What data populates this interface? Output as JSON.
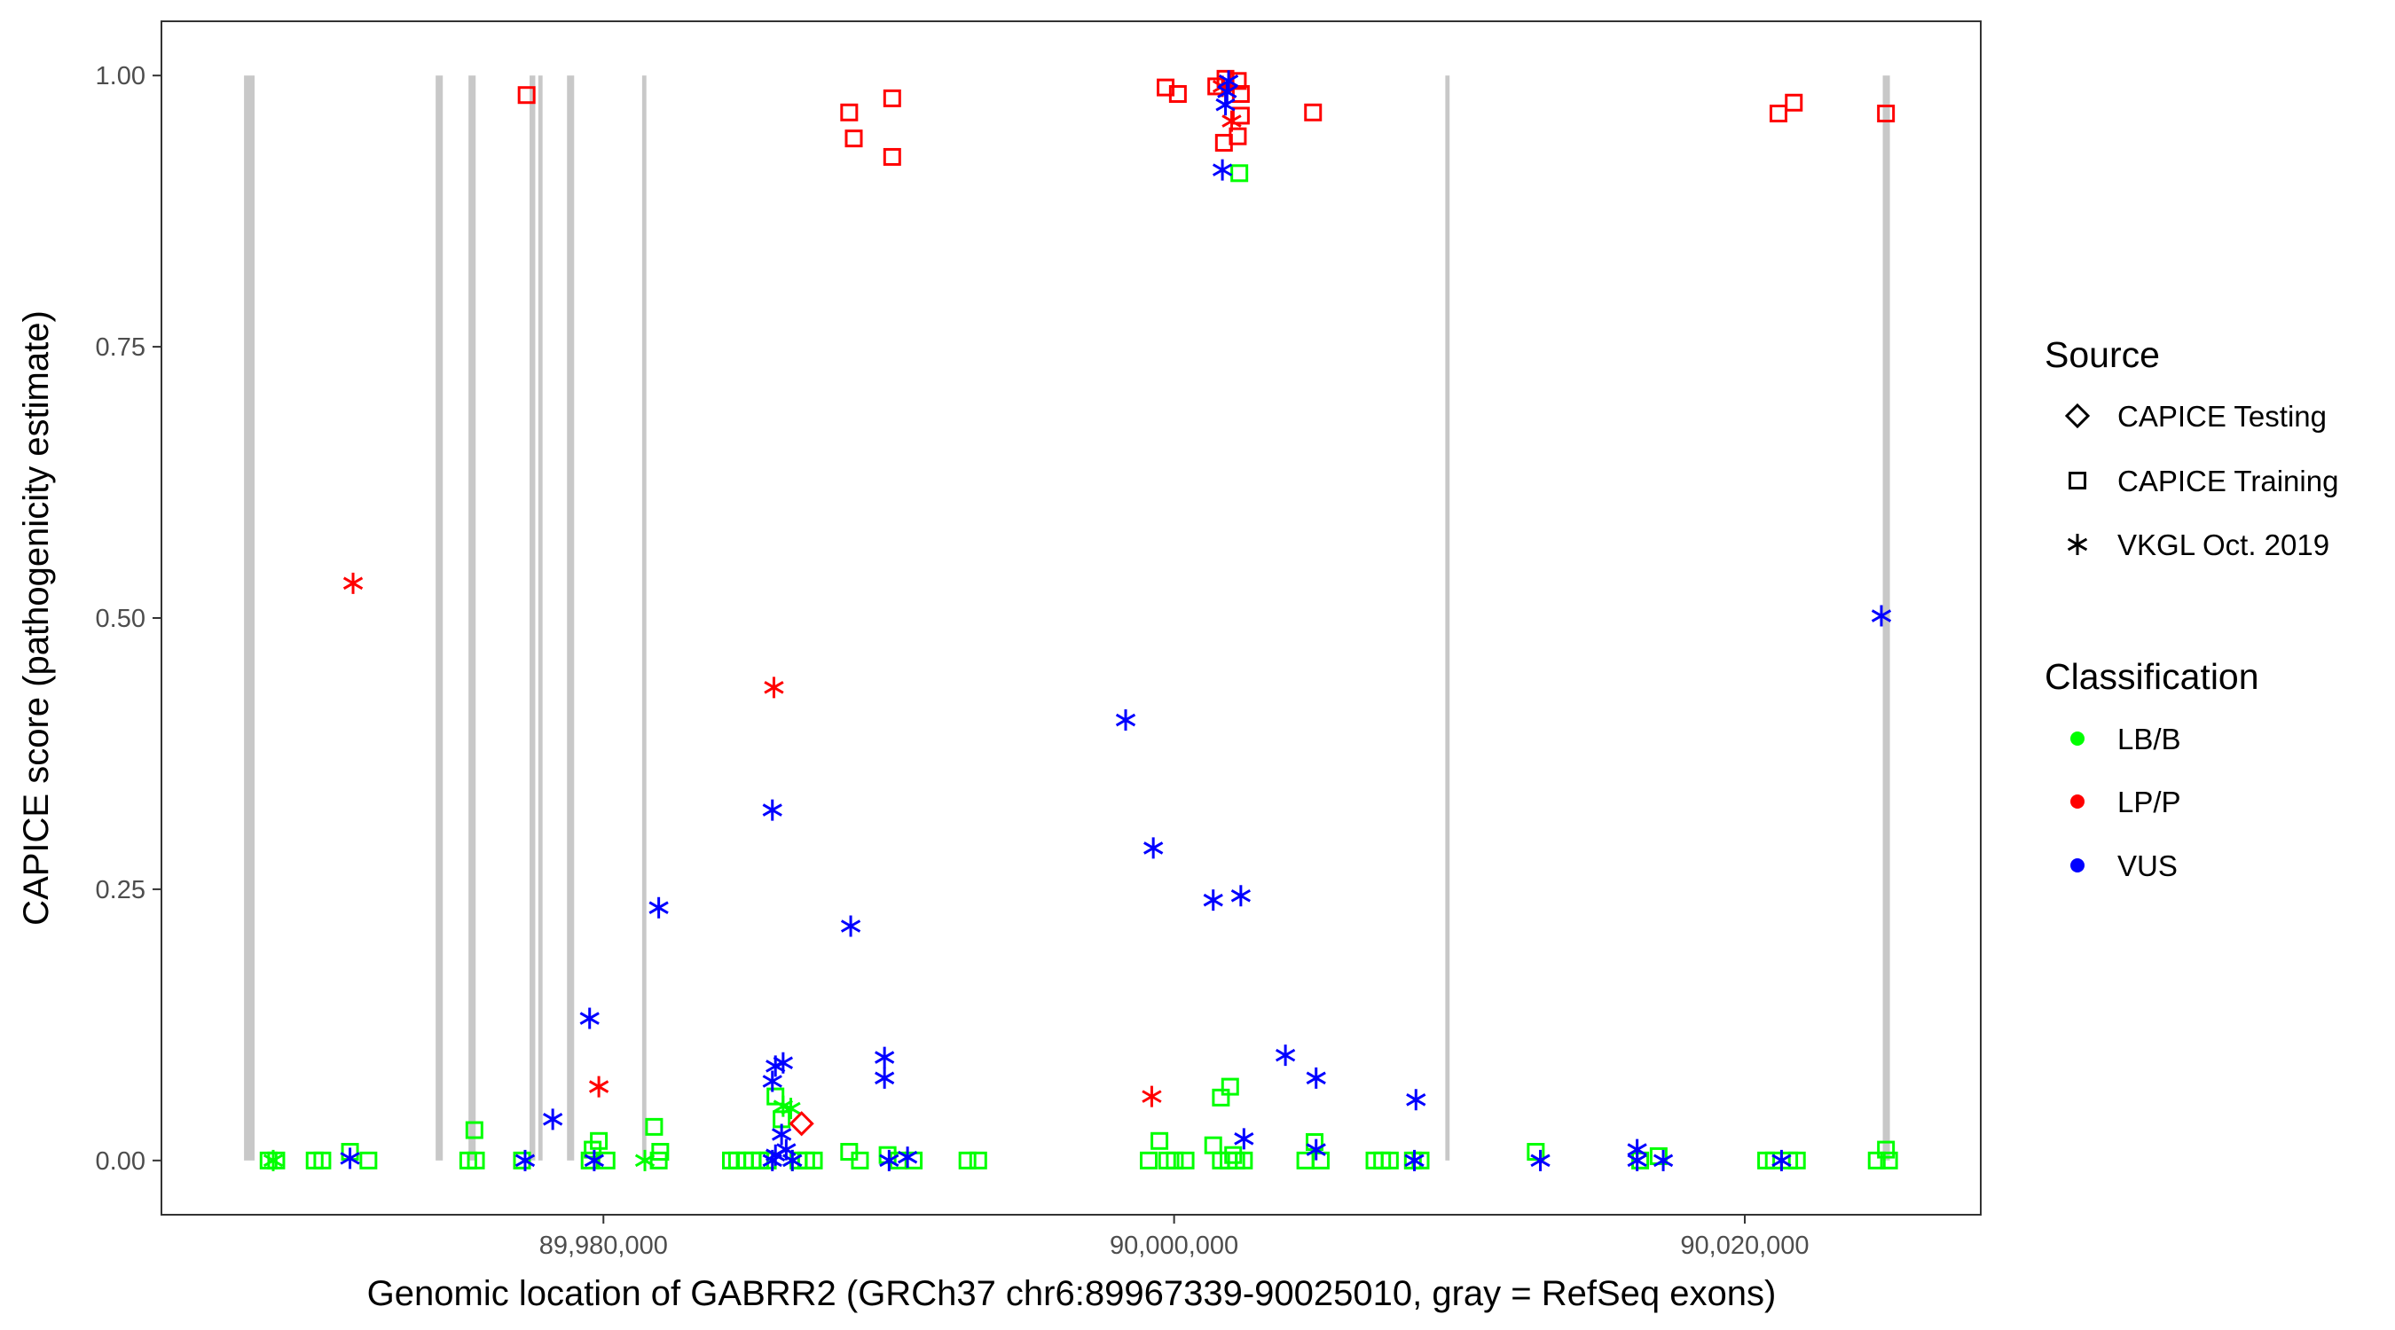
{
  "chart_data": {
    "type": "scatter",
    "xlabel": "Genomic location of GABRR2 (GRCh37 chr6:89967339-90025010, gray = RefSeq exons)",
    "ylabel": "CAPICE score (pathogenicity estimate)",
    "xlim": [
      89964510,
      90028270
    ],
    "ylim": [
      -0.05,
      1.05
    ],
    "x_ticks": [
      89980000,
      90000000,
      90020000
    ],
    "x_tick_labels": [
      "89,980,000",
      "90,000,000",
      "90,020,000"
    ],
    "y_ticks": [
      0,
      0.25,
      0.5,
      0.75,
      1.0
    ],
    "y_tick_labels": [
      "0.00",
      "0.25",
      "0.50",
      "0.75",
      "1.00"
    ],
    "grid": false,
    "exon_color": "#C8C8C8",
    "exons": [
      [
        89967404,
        89967774
      ],
      [
        89974121,
        89974371
      ],
      [
        89975272,
        89975522
      ],
      [
        89977412,
        89977612
      ],
      [
        89977717,
        89977867
      ],
      [
        89978724,
        89978974
      ],
      [
        89981356,
        89981506
      ],
      [
        90009505,
        90009655
      ],
      [
        90024836,
        90025086
      ]
    ],
    "legend": {
      "position": "right",
      "source_title": "Source",
      "sources": [
        {
          "name": "CAPICE Testing",
          "shape": "diamond"
        },
        {
          "name": "CAPICE Training",
          "shape": "square"
        },
        {
          "name": "VKGL Oct. 2019",
          "shape": "asterisk"
        }
      ],
      "class_title": "Classification",
      "classes": [
        {
          "name": "LB/B",
          "color": "#00FF00"
        },
        {
          "name": "LP/P",
          "color": "#FF0000"
        },
        {
          "name": "VUS",
          "color": "#0000FF"
        }
      ]
    },
    "point_fields": [
      "position",
      "score",
      "source_index",
      "class_index"
    ],
    "points": [
      [
        89968265,
        0,
        1,
        0
      ],
      [
        89968534,
        0,
        1,
        0
      ],
      [
        89968427,
        0,
        2,
        0
      ],
      [
        89969880,
        0,
        1,
        0
      ],
      [
        89970149,
        0,
        1,
        0
      ],
      [
        89971118,
        0.008,
        1,
        0
      ],
      [
        89971764,
        0,
        1,
        0
      ],
      [
        89975263,
        0,
        1,
        0
      ],
      [
        89975478,
        0.028,
        1,
        0
      ],
      [
        89975532,
        0,
        1,
        0
      ],
      [
        89977147,
        0,
        1,
        0
      ],
      [
        89979623,
        0.01,
        1,
        0
      ],
      [
        89979839,
        0.018,
        1,
        0
      ],
      [
        89979516,
        0,
        1,
        0
      ],
      [
        89980108,
        0,
        1,
        0
      ],
      [
        89981453,
        0,
        2,
        0
      ],
      [
        89981776,
        0.031,
        1,
        0
      ],
      [
        89981992,
        0.008,
        1,
        0
      ],
      [
        89981938,
        0,
        1,
        0
      ],
      [
        89984468,
        0,
        1,
        0
      ],
      [
        89984683,
        0,
        1,
        0
      ],
      [
        89984952,
        0,
        1,
        0
      ],
      [
        89985222,
        0,
        1,
        0
      ],
      [
        89985491,
        0,
        1,
        0
      ],
      [
        89985760,
        0,
        1,
        0
      ],
      [
        89986029,
        0.059,
        1,
        0
      ],
      [
        89986244,
        0.038,
        1,
        0
      ],
      [
        89986298,
        0.05,
        2,
        0
      ],
      [
        89986567,
        0.048,
        2,
        0
      ],
      [
        89986621,
        0,
        2,
        0
      ],
      [
        89986836,
        0,
        1,
        0
      ],
      [
        89987106,
        0,
        1,
        0
      ],
      [
        89987375,
        0,
        1,
        0
      ],
      [
        89988613,
        0.008,
        1,
        0
      ],
      [
        89988990,
        0,
        1,
        0
      ],
      [
        89989959,
        0.005,
        1,
        0
      ],
      [
        89990335,
        0,
        1,
        0
      ],
      [
        89990874,
        0,
        1,
        0
      ],
      [
        89992758,
        0,
        1,
        0
      ],
      [
        89993135,
        0,
        1,
        0
      ],
      [
        89999110,
        0,
        1,
        0
      ],
      [
        89999486,
        0.018,
        1,
        0
      ],
      [
        89999756,
        0,
        1,
        0
      ],
      [
        90000025,
        0,
        1,
        0
      ],
      [
        90000402,
        0,
        1,
        0
      ],
      [
        90001371,
        0.014,
        1,
        0
      ],
      [
        90001640,
        0.058,
        1,
        0
      ],
      [
        90001963,
        0.068,
        1,
        0
      ],
      [
        90001640,
        0,
        1,
        0
      ],
      [
        90001909,
        0,
        1,
        0
      ],
      [
        90002070,
        0.005,
        1,
        0
      ],
      [
        90002178,
        0,
        1,
        0
      ],
      [
        90002286,
        0.91,
        1,
        0
      ],
      [
        90002447,
        0,
        1,
        0
      ],
      [
        90004600,
        0,
        1,
        0
      ],
      [
        90004923,
        0.017,
        1,
        0
      ],
      [
        90005139,
        0,
        1,
        0
      ],
      [
        90007023,
        0,
        1,
        0
      ],
      [
        90007292,
        0,
        1,
        0
      ],
      [
        90007561,
        0,
        1,
        0
      ],
      [
        90008368,
        0,
        1,
        0
      ],
      [
        90008638,
        0,
        1,
        0
      ],
      [
        90012675,
        0.008,
        1,
        0
      ],
      [
        90016335,
        0,
        1,
        0
      ],
      [
        90016981,
        0.004,
        1,
        0
      ],
      [
        90020749,
        0,
        1,
        0
      ],
      [
        90021018,
        0,
        1,
        0
      ],
      [
        90021557,
        0,
        1,
        0
      ],
      [
        90021826,
        0,
        1,
        0
      ],
      [
        90024625,
        0,
        1,
        0
      ],
      [
        90024948,
        0.01,
        1,
        0
      ],
      [
        90025056,
        0,
        1,
        0
      ],
      [
        89971226,
        0.532,
        2,
        1
      ],
      [
        89985975,
        0.436,
        2,
        1
      ],
      [
        89979839,
        0.068,
        2,
        1
      ],
      [
        89999217,
        0.059,
        2,
        1
      ],
      [
        90002016,
        0.958,
        2,
        1
      ],
      [
        90001693,
        0.99,
        2,
        1
      ],
      [
        89986944,
        0.034,
        0,
        1
      ],
      [
        89977308,
        0.982,
        1,
        1
      ],
      [
        89988613,
        0.966,
        1,
        1
      ],
      [
        89988774,
        0.942,
        1,
        1
      ],
      [
        89990120,
        0.979,
        1,
        1
      ],
      [
        89990120,
        0.925,
        1,
        1
      ],
      [
        89999702,
        0.989,
        1,
        1
      ],
      [
        90000132,
        0.983,
        1,
        1
      ],
      [
        90001478,
        0.99,
        1,
        1
      ],
      [
        90001801,
        0.997,
        1,
        1
      ],
      [
        90002232,
        0.995,
        1,
        1
      ],
      [
        90001747,
        0.938,
        1,
        1
      ],
      [
        90002232,
        0.944,
        1,
        1
      ],
      [
        90002339,
        0.963,
        1,
        1
      ],
      [
        90002339,
        0.983,
        1,
        1
      ],
      [
        90004869,
        0.966,
        1,
        1
      ],
      [
        90021180,
        0.965,
        1,
        1
      ],
      [
        90021718,
        0.975,
        1,
        1
      ],
      [
        90024948,
        0.965,
        1,
        1
      ],
      [
        89971118,
        0.002,
        2,
        2
      ],
      [
        89977255,
        0,
        2,
        2
      ],
      [
        89978224,
        0.038,
        2,
        2
      ],
      [
        89979516,
        0.131,
        2,
        2
      ],
      [
        89979677,
        0,
        2,
        2
      ],
      [
        89981938,
        0.233,
        2,
        2
      ],
      [
        89985921,
        0.323,
        2,
        2
      ],
      [
        89985921,
        0.073,
        2,
        2
      ],
      [
        89986029,
        0.087,
        2,
        2
      ],
      [
        89986298,
        0.09,
        2,
        2
      ],
      [
        89986244,
        0.024,
        2,
        2
      ],
      [
        89985921,
        0,
        2,
        2
      ],
      [
        89986406,
        0.01,
        2,
        2
      ],
      [
        89986621,
        0,
        2,
        2
      ],
      [
        89986029,
        0.005,
        2,
        2
      ],
      [
        89988667,
        0.216,
        2,
        2
      ],
      [
        89989851,
        0.095,
        2,
        2
      ],
      [
        89989851,
        0.076,
        2,
        2
      ],
      [
        89990012,
        0,
        2,
        2
      ],
      [
        89990658,
        0.003,
        2,
        2
      ],
      [
        89998302,
        0.406,
        2,
        2
      ],
      [
        89999271,
        0.288,
        2,
        2
      ],
      [
        90001371,
        0.24,
        2,
        2
      ],
      [
        90002339,
        0.244,
        2,
        2
      ],
      [
        90001693,
        0.913,
        2,
        2
      ],
      [
        90001909,
        0.995,
        2,
        2
      ],
      [
        90001855,
        0.985,
        2,
        2
      ],
      [
        90001801,
        0.973,
        2,
        2
      ],
      [
        90002447,
        0.02,
        2,
        2
      ],
      [
        90003901,
        0.097,
        2,
        2
      ],
      [
        90004977,
        0.076,
        2,
        2
      ],
      [
        90004977,
        0.01,
        2,
        2
      ],
      [
        90008476,
        0.056,
        2,
        2
      ],
      [
        90008422,
        0,
        2,
        2
      ],
      [
        90012836,
        0,
        2,
        2
      ],
      [
        90016228,
        0.01,
        2,
        2
      ],
      [
        90016228,
        0,
        2,
        2
      ],
      [
        90017143,
        0,
        2,
        2
      ],
      [
        90021288,
        0,
        2,
        2
      ],
      [
        90024787,
        0.502,
        2,
        2
      ]
    ]
  }
}
